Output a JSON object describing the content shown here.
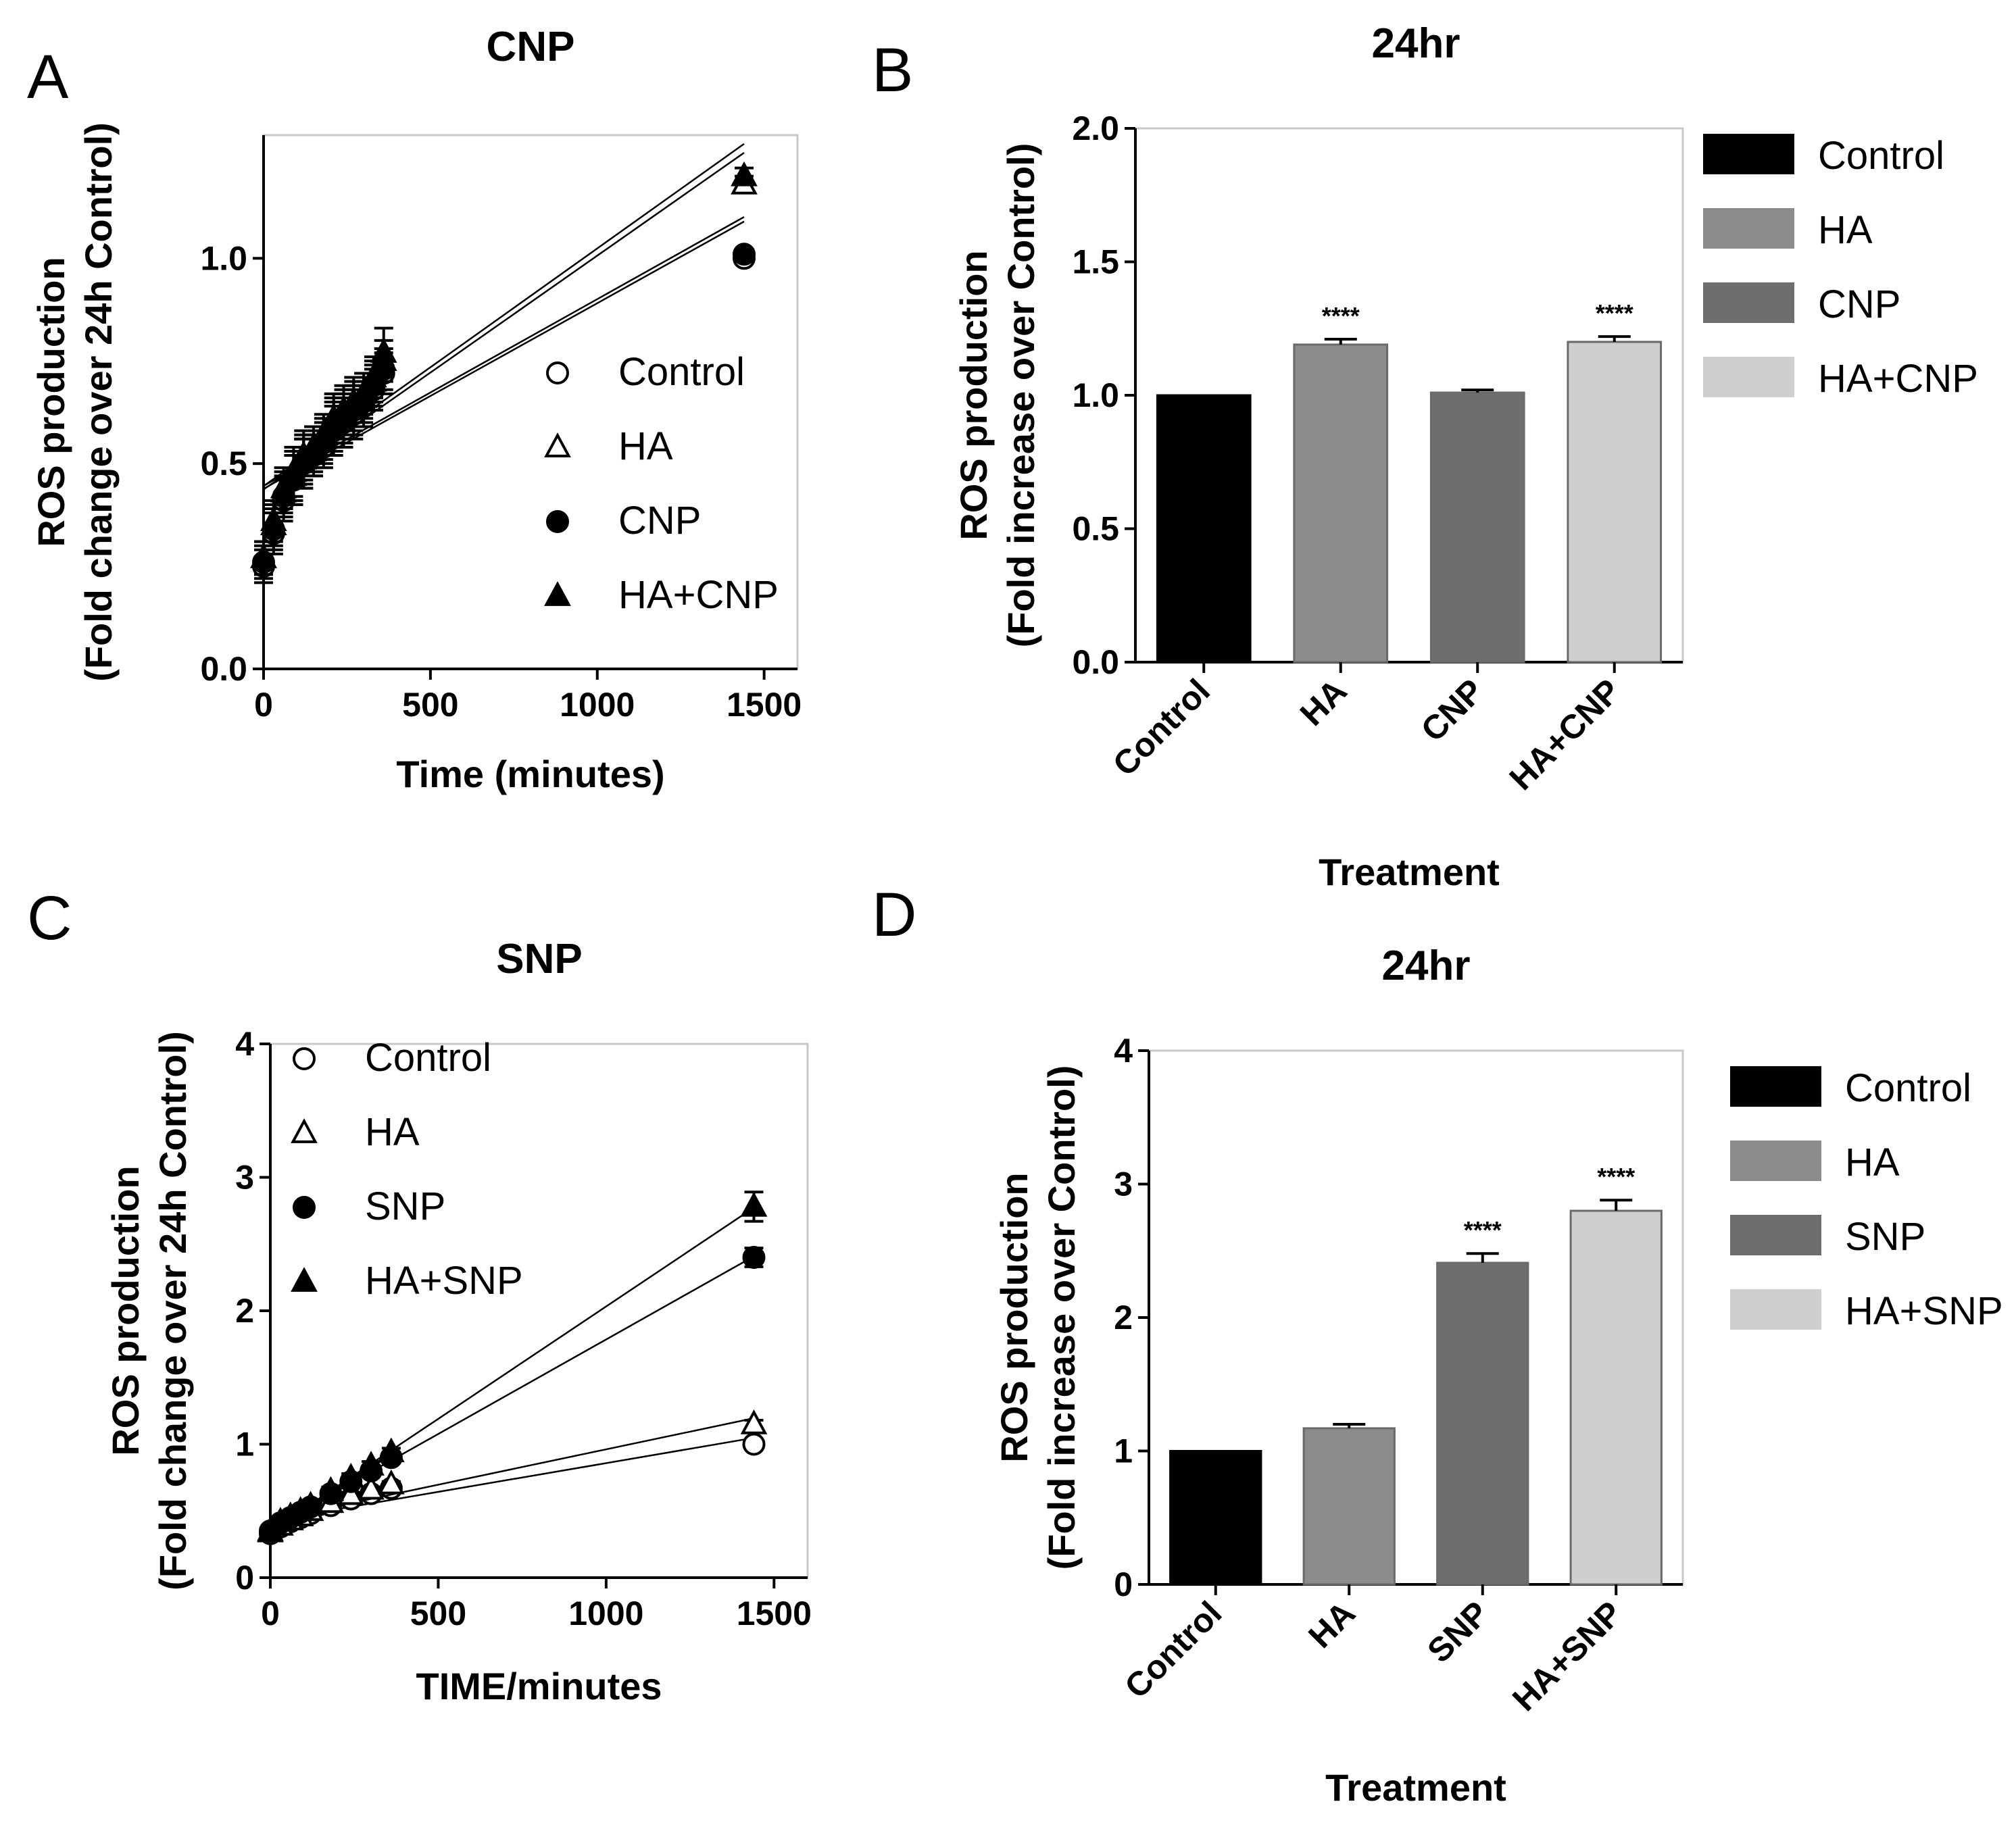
{
  "panels": [
    {
      "id": "A",
      "letter": "A",
      "chart_data": {
        "type": "scatter",
        "title": "CNP",
        "xlabel": "Time (minutes)",
        "ylabel_lines": [
          "ROS production",
          "(Fold change over 24h Control)"
        ],
        "xlim": [
          0,
          1600
        ],
        "ylim": [
          0,
          1.3
        ],
        "xticks": [
          0,
          500,
          1000,
          1500
        ],
        "xtick_labels": [
          "0",
          "500",
          "1000",
          "1500"
        ],
        "yticks": [
          0,
          0.5,
          1.0
        ],
        "ytick_labels": [
          "0.0",
          "0.5",
          "1.0"
        ],
        "legend_position": "lower-right",
        "grid": false,
        "series": [
          {
            "name": "Control",
            "marker": "circle-open",
            "x": [
              0,
              30,
              60,
              90,
              120,
              150,
              180,
              210,
              240,
              270,
              300,
              330,
              360,
              1440
            ],
            "y": [
              0.25,
              0.33,
              0.41,
              0.46,
              0.5,
              0.52,
              0.54,
              0.58,
              0.6,
              0.62,
              0.64,
              0.68,
              0.72,
              1.0
            ],
            "err": [
              0.04,
              0.05,
              0.05,
              0.06,
              0.06,
              0.05,
              0.05,
              0.06,
              0.06,
              0.06,
              0.05,
              0.05,
              0.05,
              0.01
            ]
          },
          {
            "name": "HA",
            "marker": "triangle-open",
            "x": [
              0,
              30,
              60,
              90,
              120,
              150,
              180,
              210,
              240,
              270,
              300,
              330,
              360,
              1440
            ],
            "y": [
              0.27,
              0.35,
              0.43,
              0.47,
              0.51,
              0.53,
              0.56,
              0.6,
              0.62,
              0.64,
              0.66,
              0.7,
              0.75,
              1.18
            ],
            "err": [
              0.04,
              0.05,
              0.05,
              0.06,
              0.06,
              0.05,
              0.05,
              0.06,
              0.06,
              0.06,
              0.05,
              0.05,
              0.05,
              0.02
            ]
          },
          {
            "name": "CNP",
            "marker": "circle-filled",
            "x": [
              0,
              30,
              60,
              90,
              120,
              150,
              180,
              210,
              240,
              270,
              300,
              330,
              360,
              1440
            ],
            "y": [
              0.26,
              0.34,
              0.42,
              0.46,
              0.5,
              0.52,
              0.55,
              0.59,
              0.61,
              0.63,
              0.65,
              0.69,
              0.73,
              1.01
            ],
            "err": [
              0.04,
              0.05,
              0.05,
              0.06,
              0.06,
              0.05,
              0.05,
              0.06,
              0.06,
              0.06,
              0.05,
              0.05,
              0.05,
              0.01
            ]
          },
          {
            "name": "HA+CNP",
            "marker": "triangle-filled",
            "x": [
              0,
              30,
              60,
              90,
              120,
              150,
              180,
              210,
              240,
              270,
              300,
              330,
              360,
              1440
            ],
            "y": [
              0.27,
              0.36,
              0.44,
              0.48,
              0.52,
              0.54,
              0.57,
              0.61,
              0.63,
              0.65,
              0.67,
              0.71,
              0.77,
              1.2
            ],
            "err": [
              0.04,
              0.05,
              0.05,
              0.06,
              0.06,
              0.05,
              0.05,
              0.06,
              0.06,
              0.06,
              0.05,
              0.05,
              0.06,
              0.02
            ]
          }
        ]
      }
    },
    {
      "id": "B",
      "letter": "B",
      "chart_data": {
        "type": "bar",
        "title": "24hr",
        "xlabel": "Treatment",
        "ylabel_lines": [
          "ROS production",
          "(Fold increase over Control)"
        ],
        "ylim": [
          0,
          2.0
        ],
        "yticks": [
          0,
          0.5,
          1.0,
          1.5,
          2.0
        ],
        "ytick_labels": [
          "0.0",
          "0.5",
          "1.0",
          "1.5",
          "2.0"
        ],
        "legend_position": "right",
        "categories": [
          "Control",
          "HA",
          "CNP",
          "HA+CNP"
        ],
        "values": [
          1.0,
          1.19,
          1.01,
          1.2
        ],
        "errors": [
          0.0,
          0.02,
          0.01,
          0.02
        ],
        "annotations": [
          "",
          "****",
          "",
          "****"
        ],
        "colors": [
          "#000000",
          "#8c8c8c",
          "#6e6e6e",
          "#cfcfcf"
        ]
      }
    },
    {
      "id": "C",
      "letter": "C",
      "chart_data": {
        "type": "scatter",
        "title": "SNP",
        "xlabel": "TIME/minutes",
        "ylabel_lines": [
          "ROS production",
          "(Fold change over 24h Control)"
        ],
        "xlim": [
          0,
          1600
        ],
        "ylim": [
          0,
          4
        ],
        "xticks": [
          0,
          500,
          1000,
          1500
        ],
        "xtick_labels": [
          "0",
          "500",
          "1000",
          "1500"
        ],
        "yticks": [
          0,
          1,
          2,
          3,
          4
        ],
        "ytick_labels": [
          "0",
          "1",
          "2",
          "3",
          "4"
        ],
        "legend_position": "upper-left",
        "grid": false,
        "series": [
          {
            "name": "Control",
            "marker": "circle-open",
            "x": [
              0,
              30,
              60,
              90,
              120,
              180,
              240,
              300,
              360,
              1440
            ],
            "y": [
              0.33,
              0.38,
              0.42,
              0.45,
              0.48,
              0.54,
              0.59,
              0.63,
              0.67,
              1.0
            ],
            "err": [
              0.02,
              0.02,
              0.02,
              0.02,
              0.02,
              0.02,
              0.02,
              0.02,
              0.02,
              0.03
            ]
          },
          {
            "name": "HA",
            "marker": "triangle-open",
            "x": [
              0,
              30,
              60,
              90,
              120,
              180,
              240,
              300,
              360,
              1440
            ],
            "y": [
              0.34,
              0.39,
              0.43,
              0.46,
              0.5,
              0.56,
              0.62,
              0.66,
              0.7,
              1.15
            ],
            "err": [
              0.02,
              0.02,
              0.02,
              0.02,
              0.02,
              0.02,
              0.02,
              0.02,
              0.02,
              0.03
            ]
          },
          {
            "name": "SNP",
            "marker": "circle-filled",
            "x": [
              0,
              30,
              60,
              90,
              120,
              180,
              240,
              300,
              360,
              1440
            ],
            "y": [
              0.35,
              0.41,
              0.45,
              0.49,
              0.53,
              0.63,
              0.72,
              0.8,
              0.9,
              2.4
            ],
            "err": [
              0.02,
              0.02,
              0.02,
              0.02,
              0.02,
              0.03,
              0.03,
              0.03,
              0.03,
              0.07
            ]
          },
          {
            "name": "HA+SNP",
            "marker": "triangle-filled",
            "x": [
              0,
              30,
              60,
              90,
              120,
              180,
              240,
              300,
              360,
              1440
            ],
            "y": [
              0.35,
              0.42,
              0.46,
              0.5,
              0.54,
              0.65,
              0.75,
              0.84,
              0.94,
              2.78
            ],
            "err": [
              0.02,
              0.02,
              0.02,
              0.02,
              0.02,
              0.03,
              0.03,
              0.03,
              0.03,
              0.11
            ]
          }
        ]
      }
    },
    {
      "id": "D",
      "letter": "D",
      "chart_data": {
        "type": "bar",
        "title": "24hr",
        "xlabel": "Treatment",
        "ylabel_lines": [
          "ROS production",
          "(Fold increase over Control)"
        ],
        "ylim": [
          0,
          4
        ],
        "yticks": [
          0,
          1,
          2,
          3,
          4
        ],
        "ytick_labels": [
          "0",
          "1",
          "2",
          "3",
          "4"
        ],
        "legend_position": "right",
        "categories": [
          "Control",
          "HA",
          "SNP",
          "HA+SNP"
        ],
        "values": [
          1.0,
          1.17,
          2.41,
          2.8
        ],
        "errors": [
          0.0,
          0.03,
          0.07,
          0.08
        ],
        "annotations": [
          "",
          "",
          "****",
          "****"
        ],
        "colors": [
          "#000000",
          "#8c8c8c",
          "#6e6e6e",
          "#cfcfcf"
        ]
      }
    }
  ]
}
